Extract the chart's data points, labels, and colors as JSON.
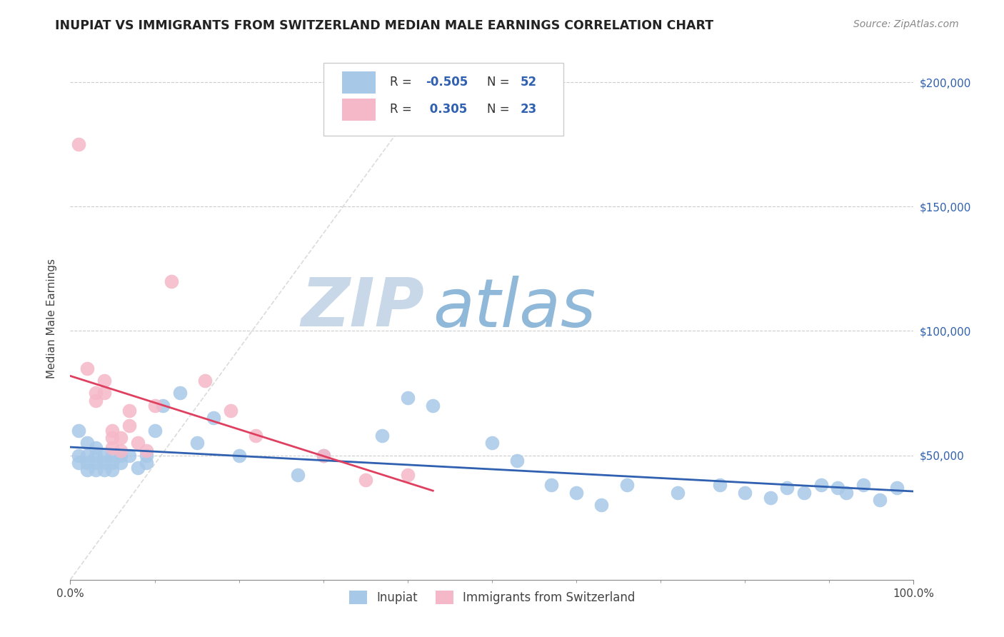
{
  "title": "INUPIAT VS IMMIGRANTS FROM SWITZERLAND MEDIAN MALE EARNINGS CORRELATION CHART",
  "source": "Source: ZipAtlas.com",
  "ylabel": "Median Male Earnings",
  "legend_labels": [
    "Inupiat",
    "Immigrants from Switzerland"
  ],
  "inupiat_R": -0.505,
  "inupiat_N": 52,
  "swiss_R": 0.305,
  "swiss_N": 23,
  "inupiat_color": "#a8c8e8",
  "swiss_color": "#f5b8c8",
  "inupiat_line_color": "#3060b0",
  "swiss_line_color": "#e04060",
  "background_color": "#ffffff",
  "watermark_zip": "ZIP",
  "watermark_atlas": "atlas",
  "watermark_color_zip": "#c8d8e8",
  "watermark_color_atlas": "#90b8d8",
  "ylim": [
    0,
    210000
  ],
  "xlim": [
    0.0,
    1.0
  ],
  "yticks": [
    50000,
    100000,
    150000,
    200000
  ],
  "ytick_labels": [
    "$50,000",
    "$100,000",
    "$150,000",
    "$200,000"
  ],
  "inupiat_x": [
    0.01,
    0.01,
    0.01,
    0.02,
    0.02,
    0.02,
    0.02,
    0.03,
    0.03,
    0.03,
    0.03,
    0.04,
    0.04,
    0.04,
    0.05,
    0.05,
    0.05,
    0.06,
    0.06,
    0.07,
    0.08,
    0.09,
    0.09,
    0.1,
    0.11,
    0.13,
    0.15,
    0.17,
    0.2,
    0.27,
    0.3,
    0.37,
    0.4,
    0.43,
    0.5,
    0.53,
    0.57,
    0.6,
    0.63,
    0.66,
    0.72,
    0.77,
    0.8,
    0.83,
    0.85,
    0.87,
    0.89,
    0.91,
    0.92,
    0.94,
    0.96,
    0.98
  ],
  "inupiat_y": [
    60000,
    50000,
    47000,
    55000,
    50000,
    47000,
    44000,
    53000,
    50000,
    47000,
    44000,
    50000,
    47000,
    44000,
    50000,
    47000,
    44000,
    50000,
    47000,
    50000,
    45000,
    47000,
    50000,
    60000,
    70000,
    75000,
    55000,
    65000,
    50000,
    42000,
    50000,
    58000,
    73000,
    70000,
    55000,
    48000,
    38000,
    35000,
    30000,
    38000,
    35000,
    38000,
    35000,
    33000,
    37000,
    35000,
    38000,
    37000,
    35000,
    38000,
    32000,
    37000
  ],
  "swiss_x": [
    0.01,
    0.02,
    0.03,
    0.03,
    0.04,
    0.04,
    0.05,
    0.05,
    0.05,
    0.06,
    0.06,
    0.07,
    0.07,
    0.08,
    0.09,
    0.1,
    0.12,
    0.16,
    0.19,
    0.22,
    0.3,
    0.35,
    0.4
  ],
  "swiss_y": [
    175000,
    85000,
    75000,
    72000,
    80000,
    75000,
    57000,
    53000,
    60000,
    57000,
    52000,
    68000,
    62000,
    55000,
    52000,
    70000,
    120000,
    80000,
    68000,
    58000,
    50000,
    40000,
    42000
  ],
  "diag_line_color": "#cccccc",
  "legend_box_color": "#ffffff",
  "legend_edge_color": "#cccccc",
  "text_color_dark": "#333333",
  "text_color_blue": "#3060b0",
  "title_fontsize": 12.5,
  "source_fontsize": 10,
  "tick_fontsize": 11
}
